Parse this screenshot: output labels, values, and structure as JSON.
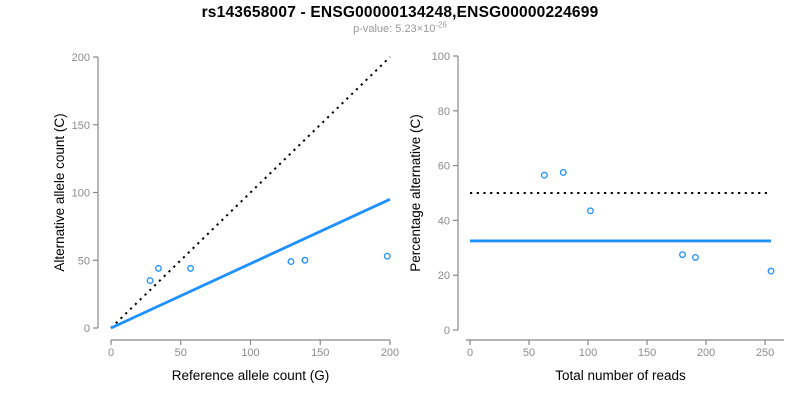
{
  "header": {
    "title": "rs143658007 - ENSG00000134248,ENSG00000224699",
    "pvalue_prefix": "p-value: 5.23×10",
    "pvalue_exponent": "-26"
  },
  "colors": {
    "accent_blue": "#1E90FF",
    "dotted_line_black": "#000000",
    "axis_gray": "#888888",
    "tick_label_gray": "#8c8c8c",
    "subtitle_gray": "#9a9a9a"
  },
  "chart_data": [
    {
      "type": "scatter",
      "name": "allele-counts-scatter",
      "xlabel": "Reference allele count (G)",
      "ylabel": "Alternative allele count (C)",
      "xlim": [
        0,
        200
      ],
      "ylim": [
        0,
        200
      ],
      "xticks": [
        0,
        50,
        100,
        150,
        200
      ],
      "yticks": [
        0,
        50,
        100,
        150,
        200
      ],
      "grid": false,
      "legend": null,
      "points": [
        [
          28,
          35
        ],
        [
          34,
          44
        ],
        [
          57,
          44
        ],
        [
          129,
          49
        ],
        [
          139,
          50
        ],
        [
          198,
          53
        ]
      ],
      "point_style": {
        "shape": "open-circle",
        "color": "#1E90FF"
      },
      "lines": [
        {
          "name": "identity-dotted-line",
          "style": "dotted",
          "color": "#000000",
          "from": [
            0,
            0
          ],
          "to": [
            200,
            200
          ]
        },
        {
          "name": "regression-fit-line",
          "style": "solid",
          "color": "#1E90FF",
          "from": [
            0,
            0
          ],
          "to": [
            200,
            95
          ]
        }
      ]
    },
    {
      "type": "scatter",
      "name": "percentage-alternative-scatter",
      "xlabel": "Total number of reads",
      "ylabel": "Percentage alternative (C)",
      "xlim": [
        0,
        255
      ],
      "ylim": [
        0,
        100
      ],
      "xticks": [
        0,
        50,
        100,
        150,
        200,
        250
      ],
      "yticks": [
        0,
        20,
        40,
        60,
        80,
        100
      ],
      "grid": false,
      "legend": null,
      "points": [
        [
          63,
          56.5
        ],
        [
          79,
          57.5
        ],
        [
          102,
          43.5
        ],
        [
          180,
          27.5
        ],
        [
          191,
          26.5
        ],
        [
          255,
          21.5
        ]
      ],
      "point_style": {
        "shape": "open-circle",
        "color": "#1E90FF"
      },
      "lines": [
        {
          "name": "expected-50pct-dotted-line",
          "style": "dotted",
          "color": "#000000",
          "from": [
            0,
            50
          ],
          "to": [
            255,
            50
          ]
        },
        {
          "name": "mean-percentage-line",
          "style": "solid",
          "color": "#1E90FF",
          "from": [
            0,
            32.5
          ],
          "to": [
            255,
            32.5
          ]
        }
      ]
    }
  ]
}
